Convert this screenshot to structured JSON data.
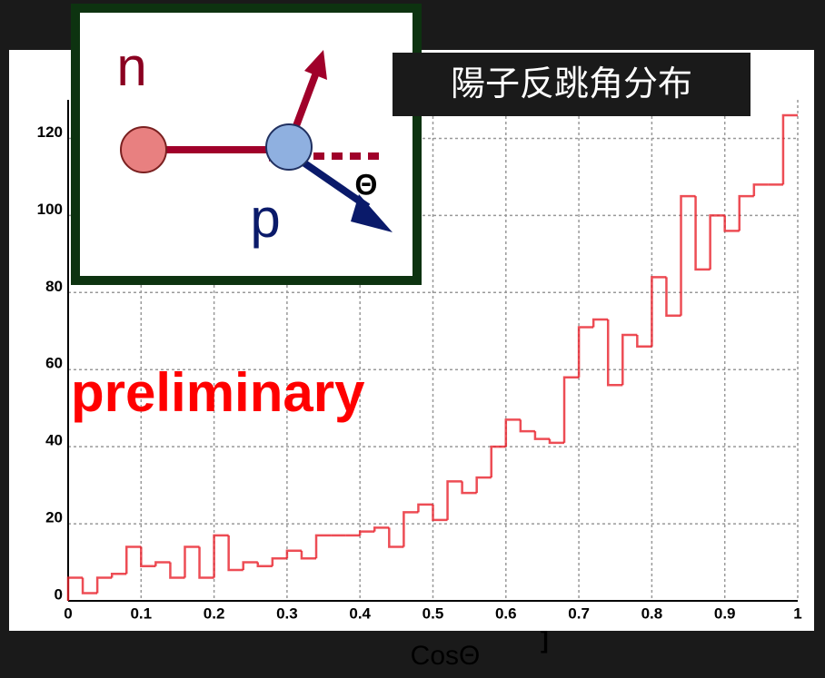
{
  "chart_data": {
    "type": "histogram",
    "bins": [
      0,
      0.02,
      0.04,
      0.06,
      0.08,
      0.1,
      0.12,
      0.14,
      0.16,
      0.18,
      0.2,
      0.22,
      0.24,
      0.26,
      0.28,
      0.3,
      0.32,
      0.34,
      0.36,
      0.38,
      0.4,
      0.42,
      0.44,
      0.46,
      0.48,
      0.5,
      0.52,
      0.54,
      0.56,
      0.58,
      0.6,
      0.62,
      0.64,
      0.66,
      0.68,
      0.7,
      0.72,
      0.74,
      0.76,
      0.78,
      0.8,
      0.82,
      0.84,
      0.86,
      0.88,
      0.9,
      0.92,
      0.94,
      0.96,
      0.98,
      1
    ],
    "counts": [
      6,
      2,
      6,
      7,
      14,
      9,
      10,
      6,
      14,
      6,
      17,
      8,
      10,
      9,
      11,
      13,
      11,
      17,
      17,
      17,
      18,
      19,
      14,
      23,
      25,
      21,
      31,
      28,
      32,
      40,
      47,
      44,
      42,
      41,
      58,
      71,
      73,
      56,
      69,
      66,
      84,
      74,
      105,
      86,
      100,
      96,
      105,
      108,
      108,
      126
    ],
    "color": "#e8202a",
    "xlim": [
      0,
      1
    ],
    "xticks": [
      0,
      0.1,
      0.2,
      0.3,
      0.4,
      0.5,
      0.6,
      0.7,
      0.8,
      0.9,
      1
    ],
    "ylim": [
      0,
      130
    ],
    "yticks": [
      0,
      20,
      40,
      60,
      80,
      100,
      120
    ],
    "grid": true,
    "x_label": "CosΘ",
    "title": "陽子反跳角分布",
    "annotations": {
      "watermark": "preliminary",
      "bracket": "]",
      "neutron": "n",
      "proton": "p",
      "angle": "Θ"
    }
  }
}
